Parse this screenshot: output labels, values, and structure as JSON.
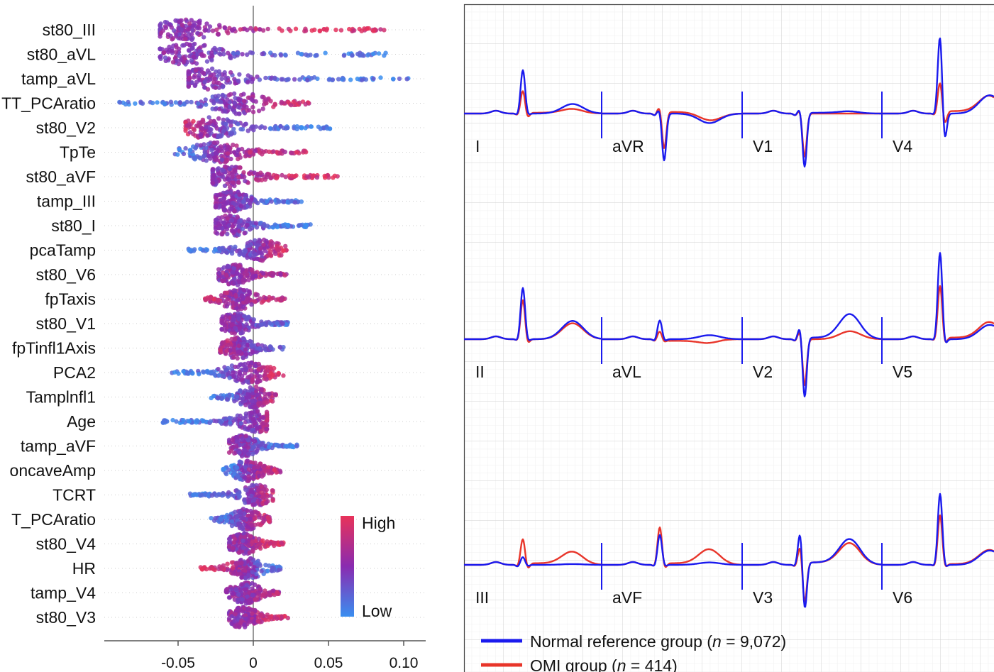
{
  "chart_data": [
    {
      "type": "scatter",
      "subtype": "beeswarm",
      "xlim": [
        -0.1,
        0.115
      ],
      "x_ticks": [
        "-0.05",
        "0",
        "0.05",
        "0.10"
      ],
      "x_tick_values": [
        -0.05,
        0,
        0.05,
        0.1
      ],
      "colorbar": {
        "high_label": "High",
        "low_label": "Low",
        "high_color": "#e8335a",
        "mid_color": "#8a2bb0",
        "low_color": "#3a8ef0"
      },
      "features": [
        {
          "name": "st80_III",
          "min": -0.062,
          "max": 0.087,
          "core": -0.046,
          "left_color": 0.5,
          "right_color": 0.9
        },
        {
          "name": "st80_aVL",
          "min": -0.062,
          "max": 0.088,
          "core": -0.042,
          "left_color": 0.5,
          "right_color": 0.1
        },
        {
          "name": "tamp_aVL",
          "min": -0.043,
          "max": 0.103,
          "core": -0.032,
          "left_color": 0.5,
          "right_color": 0.1
        },
        {
          "name": "TT_PCAratio",
          "min": -0.089,
          "max": 0.037,
          "core": -0.01,
          "left_color": 0.1,
          "right_color": 0.85
        },
        {
          "name": "st80_V2",
          "min": -0.045,
          "max": 0.051,
          "core": -0.03,
          "left_color": 0.8,
          "right_color": 0.1
        },
        {
          "name": "TpTe",
          "min": -0.052,
          "max": 0.035,
          "core": -0.025,
          "left_color": 0.15,
          "right_color": 0.8
        },
        {
          "name": "st80_aVF",
          "min": -0.027,
          "max": 0.056,
          "core": -0.017,
          "left_color": 0.5,
          "right_color": 0.9
        },
        {
          "name": "tamp_III",
          "min": -0.025,
          "max": 0.032,
          "core": -0.015,
          "left_color": 0.55,
          "right_color": 0.15
        },
        {
          "name": "st80_I",
          "min": -0.025,
          "max": 0.038,
          "core": -0.015,
          "left_color": 0.55,
          "right_color": 0.1
        },
        {
          "name": "pcaTamp",
          "min": -0.043,
          "max": 0.022,
          "core": 0.005,
          "left_color": 0.1,
          "right_color": 0.85
        },
        {
          "name": "st80_V6",
          "min": -0.023,
          "max": 0.022,
          "core": -0.012,
          "left_color": 0.55,
          "right_color": 0.7
        },
        {
          "name": "fpTaxis",
          "min": -0.032,
          "max": 0.021,
          "core": -0.01,
          "left_color": 0.8,
          "right_color": 0.8
        },
        {
          "name": "st80_V1",
          "min": -0.021,
          "max": 0.023,
          "core": -0.012,
          "left_color": 0.55,
          "right_color": 0.2
        },
        {
          "name": "fpTinfl1Axis",
          "min": -0.022,
          "max": 0.02,
          "core": -0.01,
          "left_color": 0.7,
          "right_color": 0.3
        },
        {
          "name": "PCA2",
          "min": -0.054,
          "max": 0.02,
          "core": -0.003,
          "left_color": 0.1,
          "right_color": 0.85
        },
        {
          "name": "Tamplnfl1",
          "min": -0.028,
          "max": 0.015,
          "core": 0.0,
          "left_color": 0.15,
          "right_color": 0.75
        },
        {
          "name": "Age",
          "min": -0.06,
          "max": 0.009,
          "core": 0.003,
          "left_color": 0.1,
          "right_color": 0.7
        },
        {
          "name": "tamp_aVF",
          "min": -0.016,
          "max": 0.029,
          "core": -0.007,
          "left_color": 0.55,
          "right_color": 0.1
        },
        {
          "name": "oncaveAmp",
          "min": -0.02,
          "max": 0.018,
          "core": -0.004,
          "left_color": 0.1,
          "right_color": 0.8
        },
        {
          "name": "TCRT",
          "min": -0.042,
          "max": 0.013,
          "core": 0.002,
          "left_color": 0.1,
          "right_color": 0.8
        },
        {
          "name": "T_PCAratio",
          "min": -0.028,
          "max": 0.011,
          "core": -0.005,
          "left_color": 0.2,
          "right_color": 0.8
        },
        {
          "name": "st80_V4",
          "min": -0.016,
          "max": 0.02,
          "core": -0.007,
          "left_color": 0.55,
          "right_color": 0.9
        },
        {
          "name": "HR",
          "min": -0.035,
          "max": 0.018,
          "core": -0.004,
          "left_color": 0.9,
          "right_color": 0.15
        },
        {
          "name": "tamp_V4",
          "min": -0.018,
          "max": 0.017,
          "core": -0.005,
          "left_color": 0.5,
          "right_color": 0.7
        },
        {
          "name": "st80_V3",
          "min": -0.016,
          "max": 0.023,
          "core": -0.007,
          "left_color": 0.55,
          "right_color": 0.9
        }
      ]
    },
    {
      "type": "line",
      "subtype": "ecg-12-lead",
      "grid": true,
      "legend_placement": "bottom-left",
      "series": [
        {
          "key": "normal",
          "name_prefix": "Normal reference group (",
          "n_label": "n",
          "name_suffix": " = 9,072)",
          "color": "#1a1aee"
        },
        {
          "key": "omi",
          "name_prefix": "OMI group (",
          "n_label": "n",
          "name_suffix": " = 414)",
          "color": "#e8352a"
        }
      ],
      "amplitude_units": "small grid boxes",
      "leads": [
        {
          "label": "I",
          "normal": {
            "r": 5.5,
            "s": -0.3,
            "t": 1.2,
            "st": 0
          },
          "omi": {
            "r": 2.9,
            "s": -0.6,
            "t": 0.5,
            "st": 0.1
          }
        },
        {
          "label": "aVR",
          "normal": {
            "r": 0.6,
            "s": -6.0,
            "t": -1.2,
            "st": 0
          },
          "omi": {
            "r": 0.9,
            "s": -4.5,
            "t": -1.0,
            "st": 0.2
          }
        },
        {
          "label": "V1",
          "normal": {
            "r": 0.7,
            "s": -6.8,
            "t": 0.2,
            "st": 0.1
          },
          "omi": {
            "r": 0.5,
            "s": -5.5,
            "t": 0.0,
            "st": 0
          }
        },
        {
          "label": "V4",
          "normal": {
            "r": 10.0,
            "s": -4.0,
            "t": 2.3,
            "st": 0
          },
          "omi": {
            "r": 4.0,
            "s": -1.5,
            "t": 2.0,
            "st": 0.3
          }
        },
        {
          "label": "II",
          "normal": {
            "r": 6.5,
            "s": -0.4,
            "t": 2.3,
            "st": 0
          },
          "omi": {
            "r": 5.0,
            "s": -0.7,
            "t": 2.0,
            "st": 0
          }
        },
        {
          "label": "aVL",
          "normal": {
            "r": 2.4,
            "s": -0.3,
            "t": 0.5,
            "st": 0
          },
          "omi": {
            "r": 1.0,
            "s": -0.4,
            "t": -0.3,
            "st": -0.2
          }
        },
        {
          "label": "V2",
          "normal": {
            "r": 1.7,
            "s": -7.5,
            "t": 3.0,
            "st": 0.2
          },
          "omi": {
            "r": 1.2,
            "s": -6.0,
            "t": 1.0,
            "st": 0
          }
        },
        {
          "label": "V5",
          "normal": {
            "r": 11.0,
            "s": -1.0,
            "t": 1.8,
            "st": 0
          },
          "omi": {
            "r": 6.8,
            "s": -0.8,
            "t": 2.0,
            "st": 0.2
          }
        },
        {
          "label": "III",
          "normal": {
            "r": 1.0,
            "s": -0.2,
            "t": 0.1,
            "st": 0
          },
          "omi": {
            "r": 3.3,
            "s": -0.6,
            "t": 1.5,
            "st": 0.2
          }
        },
        {
          "label": "aVF",
          "normal": {
            "r": 3.8,
            "s": -0.3,
            "t": 0.3,
            "st": 0
          },
          "omi": {
            "r": 4.8,
            "s": -0.6,
            "t": 1.8,
            "st": 0.2
          }
        },
        {
          "label": "V3",
          "normal": {
            "r": 4.3,
            "s": -6.0,
            "t": 3.0,
            "st": 0.3
          },
          "omi": {
            "r": 2.5,
            "s": -5.0,
            "t": 2.5,
            "st": 0.3
          }
        },
        {
          "label": "V6",
          "normal": {
            "r": 9.0,
            "s": -0.5,
            "t": 1.8,
            "st": 0
          },
          "omi": {
            "r": 6.3,
            "s": -0.5,
            "t": 1.8,
            "st": 0.1
          }
        }
      ]
    }
  ]
}
